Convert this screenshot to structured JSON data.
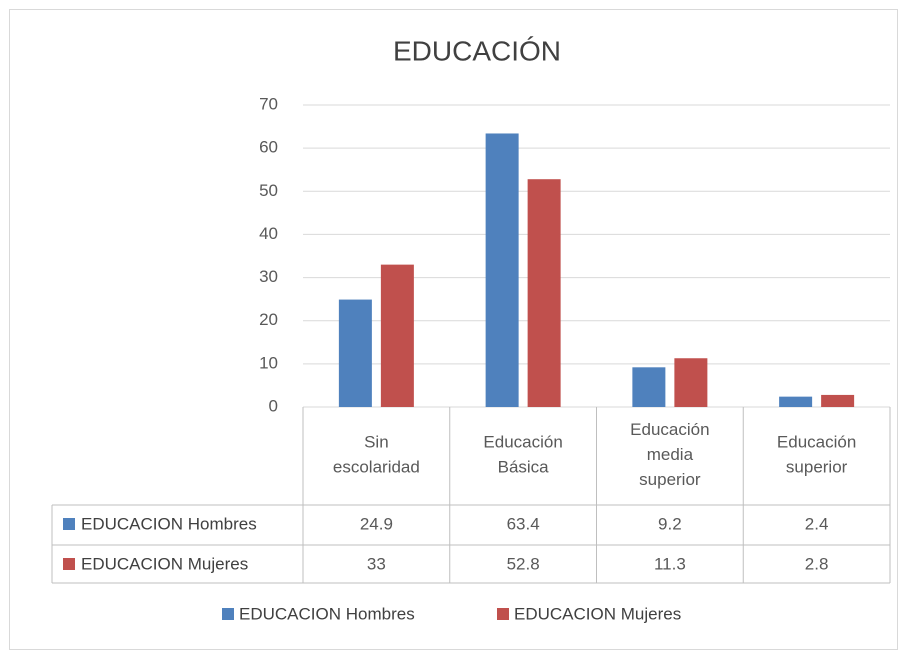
{
  "chart_data": {
    "type": "bar",
    "title": "EDUCACIÓN",
    "categories": [
      "Sin escolaridad",
      "Educación Básica",
      "Educación media superior",
      "Educación superior"
    ],
    "series": [
      {
        "name": "EDUCACION Hombres",
        "color": "#4f81bd",
        "values": [
          24.9,
          63.4,
          9.2,
          2.4
        ]
      },
      {
        "name": "EDUCACION Mujeres",
        "color": "#c0504d",
        "values": [
          33,
          52.8,
          11.3,
          2.8
        ]
      }
    ],
    "ylim": [
      0,
      70
    ],
    "yticks": [
      0,
      10,
      20,
      30,
      40,
      50,
      60,
      70
    ],
    "grid": true,
    "legend": "bottom"
  }
}
